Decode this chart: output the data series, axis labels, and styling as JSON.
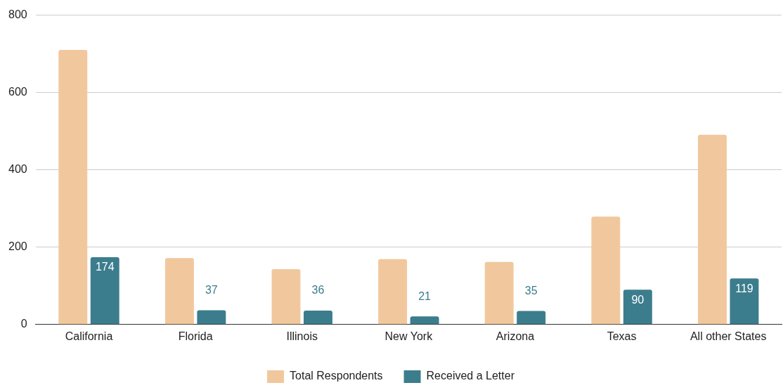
{
  "chart_data": {
    "type": "bar",
    "categories": [
      "California",
      "Florida",
      "Illinois",
      "New York",
      "Arizona",
      "Texas",
      "All other States"
    ],
    "series": [
      {
        "name": "Total Respondents",
        "color": "#f1c89d",
        "values": [
          710,
          172,
          143,
          169,
          162,
          279,
          491
        ]
      },
      {
        "name": "Received a Letter",
        "color": "#3c7d8d",
        "values": [
          174,
          37,
          36,
          21,
          35,
          90,
          119
        ],
        "value_labels": [
          "174",
          "37",
          "36",
          "21",
          "35",
          "90",
          "119"
        ]
      }
    ],
    "ylim": [
      0,
      800
    ],
    "yticks": [
      0,
      200,
      400,
      600,
      800
    ],
    "grid": "y",
    "legend": "bottom"
  }
}
